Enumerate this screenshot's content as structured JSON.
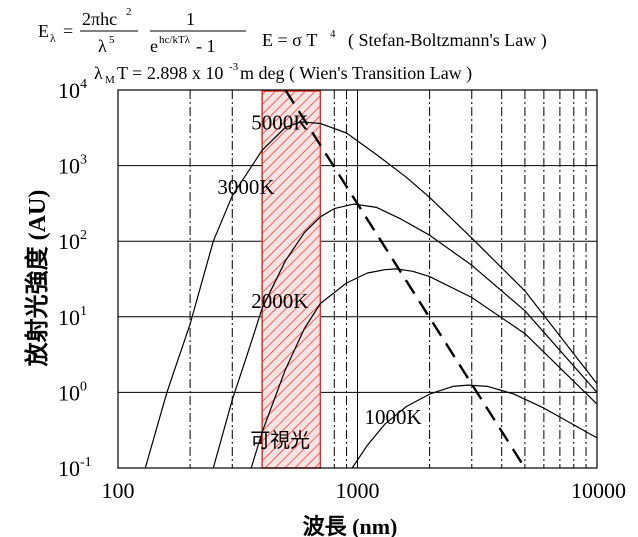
{
  "formulas": {
    "planck": {
      "lhs": "E",
      "lhs_sub": "λ",
      "eq": "=",
      "num": "2πhc",
      "num_sup": "2",
      "den": "λ",
      "den_sup": "5",
      "num2": "1",
      "den2_base": "e",
      "den2_sup": "hc/kTλ",
      "den2_tail": " - 1"
    },
    "stefan": {
      "text": "E = σ T",
      "sup": "4",
      "name": "( Stefan-Boltzmann's Law )"
    },
    "wien": {
      "lambda": "λ",
      "sub": "M",
      "text1": " T = 2.898 x 10",
      "sup": "-3",
      "text2": " m deg ( Wien's Transition Law )"
    }
  },
  "chart_data": {
    "type": "line",
    "title": "",
    "xlabel": "波長 (nm)",
    "ylabel": "放射光強度 (AU)",
    "x_scale": "log",
    "y_scale": "log",
    "xlim": [
      100,
      10000
    ],
    "ylim": [
      0.1,
      10000
    ],
    "grid": true,
    "x_ticks": [
      {
        "value": 100,
        "label": "100"
      },
      {
        "value": 1000,
        "label": "1000"
      },
      {
        "value": 10000,
        "label": "10000"
      }
    ],
    "y_ticks": [
      {
        "value": 0.1,
        "base": "10",
        "exp": "-1"
      },
      {
        "value": 1,
        "base": "10",
        "exp": "0"
      },
      {
        "value": 10,
        "base": "10",
        "exp": "1"
      },
      {
        "value": 100,
        "base": "10",
        "exp": "2"
      },
      {
        "value": 1000,
        "base": "10",
        "exp": "3"
      },
      {
        "value": 10000,
        "base": "10",
        "exp": "4"
      }
    ],
    "series": [
      {
        "name": "5000K",
        "label_at": [
          360,
          3000
        ],
        "x": [
          130,
          160,
          200,
          250,
          300,
          400,
          500,
          580,
          700,
          900,
          1200,
          1600,
          2000,
          3000,
          5000,
          10000
        ],
        "y": [
          0.1,
          1,
          8,
          100,
          400,
          1600,
          3200,
          3800,
          3600,
          2700,
          1400,
          700,
          380,
          110,
          22,
          1.3
        ]
      },
      {
        "name": "3000K",
        "label_at": [
          260,
          420
        ],
        "x": [
          250,
          300,
          350,
          400,
          500,
          600,
          700,
          800,
          966,
          1200,
          1500,
          2000,
          3000,
          5000,
          10000
        ],
        "y": [
          0.1,
          0.8,
          3.5,
          13,
          55,
          130,
          210,
          270,
          310,
          280,
          200,
          120,
          48,
          12,
          1
        ]
      },
      {
        "name": "2000K",
        "label_at": [
          360,
          13
        ],
        "x": [
          360,
          400,
          500,
          600,
          700,
          900,
          1100,
          1300,
          1449,
          1700,
          2000,
          3000,
          5000,
          10000
        ],
        "y": [
          0.1,
          0.3,
          2,
          7,
          15,
          28,
          38,
          42,
          43,
          40,
          34,
          18,
          6,
          0.7
        ]
      },
      {
        "name": "1000K",
        "label_at": [
          1070,
          0.38
        ],
        "x": [
          950,
          1100,
          1300,
          1600,
          2000,
          2500,
          2898,
          3500,
          4500,
          6000,
          10000
        ],
        "y": [
          0.1,
          0.2,
          0.38,
          0.65,
          0.95,
          1.2,
          1.25,
          1.2,
          0.95,
          0.62,
          0.25
        ]
      }
    ],
    "wien_line": {
      "x": [
        500,
        5000
      ],
      "y": [
        10000,
        0.1
      ]
    },
    "visible_band": {
      "x_from": 400,
      "x_to": 700,
      "label": "可視光",
      "color": "#e0302b"
    }
  }
}
